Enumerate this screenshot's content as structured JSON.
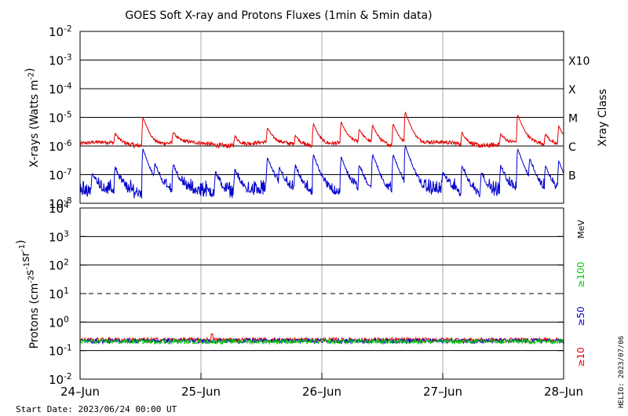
{
  "title": "GOES Soft X-ray and Protons Fluxes   (1min & 5min data)",
  "footer_start": "Start Date: 2023/06/24 00:00 UT",
  "footer_right": "HELIO: 2023/07/06",
  "colors": {
    "xray_long": "#e00000",
    "xray_short": "#0000cc",
    "p10": "#e00000",
    "p50": "#0000cc",
    "p100": "#00cc00",
    "grid": "#000000",
    "day_lines": "#aaaaaa"
  },
  "chart_data": [
    {
      "type": "line",
      "name": "xrays",
      "ylabel": "X-rays (Watts m",
      "ylabel_sup": "-2",
      "ylabel_end": ")",
      "yscale": "log",
      "ylim": [
        1e-08,
        0.01
      ],
      "yticks": [
        {
          "base": "10",
          "exp": "-2",
          "v": 0.01
        },
        {
          "base": "10",
          "exp": "-3",
          "v": 0.001
        },
        {
          "base": "10",
          "exp": "-4",
          "v": 0.0001
        },
        {
          "base": "10",
          "exp": "-5",
          "v": 1e-05
        },
        {
          "base": "10",
          "exp": "-6",
          "v": 1e-06
        },
        {
          "base": "10",
          "exp": "-7",
          "v": 1e-07
        },
        {
          "base": "10",
          "exp": "-8",
          "v": 1e-08
        }
      ],
      "class_axis_label": "Xray Class",
      "class_labels": [
        {
          "label": "X10",
          "v": 0.001
        },
        {
          "label": "X",
          "v": 0.0001
        },
        {
          "label": "M",
          "v": 1e-05
        },
        {
          "label": "C",
          "v": 1e-06
        },
        {
          "label": "B",
          "v": 1e-07
        }
      ],
      "x_range_days": [
        0,
        4
      ],
      "series": [
        {
          "key": "long",
          "baseline": 1e-06,
          "peaks": [
            [
              0.52,
              1e-05
            ],
            [
              0.29,
              2.5e-06
            ],
            [
              0.77,
              2.8e-06
            ],
            [
              1.28,
              2.2e-06
            ],
            [
              1.55,
              4e-06
            ],
            [
              1.78,
              2.3e-06
            ],
            [
              1.93,
              6e-06
            ],
            [
              2.16,
              6.5e-06
            ],
            [
              2.31,
              3.5e-06
            ],
            [
              2.42,
              5e-06
            ],
            [
              2.59,
              6e-06
            ],
            [
              2.69,
              1.5e-05
            ],
            [
              3.16,
              2.8e-06
            ],
            [
              3.48,
              2.5e-06
            ],
            [
              3.62,
              1.2e-05
            ],
            [
              3.85,
              2.5e-06
            ],
            [
              3.96,
              5e-06
            ]
          ]
        },
        {
          "key": "short",
          "baseline": 2.5e-08,
          "peaks": [
            [
              0.52,
              8e-07
            ],
            [
              0.1,
              1.1e-07
            ],
            [
              0.29,
              1.8e-07
            ],
            [
              0.62,
              2e-07
            ],
            [
              0.77,
              2.2e-07
            ],
            [
              1.12,
              1.2e-07
            ],
            [
              1.28,
              1.5e-07
            ],
            [
              1.55,
              4e-07
            ],
            [
              1.65,
              1.5e-07
            ],
            [
              1.78,
              2e-07
            ],
            [
              1.93,
              5e-07
            ],
            [
              2.16,
              4e-07
            ],
            [
              2.31,
              2e-07
            ],
            [
              2.42,
              5e-07
            ],
            [
              2.59,
              5e-07
            ],
            [
              2.69,
              1e-06
            ],
            [
              3.0,
              1.2e-07
            ],
            [
              3.16,
              2e-07
            ],
            [
              3.32,
              1.2e-07
            ],
            [
              3.48,
              2e-07
            ],
            [
              3.62,
              8e-07
            ],
            [
              3.72,
              3e-07
            ],
            [
              3.85,
              2e-07
            ],
            [
              3.96,
              3e-07
            ]
          ]
        }
      ]
    },
    {
      "type": "line",
      "name": "protons",
      "ylabel": "Protons (cm",
      "ylabel_sup1": "-2",
      "ylabel_mid1": "s",
      "ylabel_sup2": "-1",
      "ylabel_mid2": "sr",
      "ylabel_sup3": "-1",
      "ylabel_end": ")",
      "yscale": "log",
      "ylim": [
        0.01,
        10000
      ],
      "yticks": [
        {
          "base": "10",
          "exp": "4",
          "v": 10000.0
        },
        {
          "base": "10",
          "exp": "3",
          "v": 1000.0
        },
        {
          "base": "10",
          "exp": "2",
          "v": 100.0
        },
        {
          "base": "10",
          "exp": "1",
          "v": 10.0
        },
        {
          "base": "10",
          "exp": "0",
          "v": 1
        },
        {
          "base": "10",
          "exp": "-1",
          "v": 0.1
        },
        {
          "base": "10",
          "exp": "-2",
          "v": 0.01
        }
      ],
      "threshold": 10,
      "energy_unit": "MeV",
      "energy_labels": [
        {
          "label": "≥100",
          "color": "#00cc00"
        },
        {
          "label": "≥50",
          "color": "#0000cc"
        },
        {
          "label": "≥10",
          "color": "#e00000"
        }
      ],
      "series": [
        {
          "key": "p10",
          "level": 0.24,
          "note": "≥10 MeV"
        },
        {
          "key": "p50",
          "level": 0.22,
          "note": "≥50 MeV"
        },
        {
          "key": "p100",
          "level": 0.21,
          "note": "≥100 MeV"
        }
      ]
    }
  ],
  "x_ticks": [
    "24–Jun",
    "25–Jun",
    "26–Jun",
    "27–Jun",
    "28–Jun"
  ]
}
